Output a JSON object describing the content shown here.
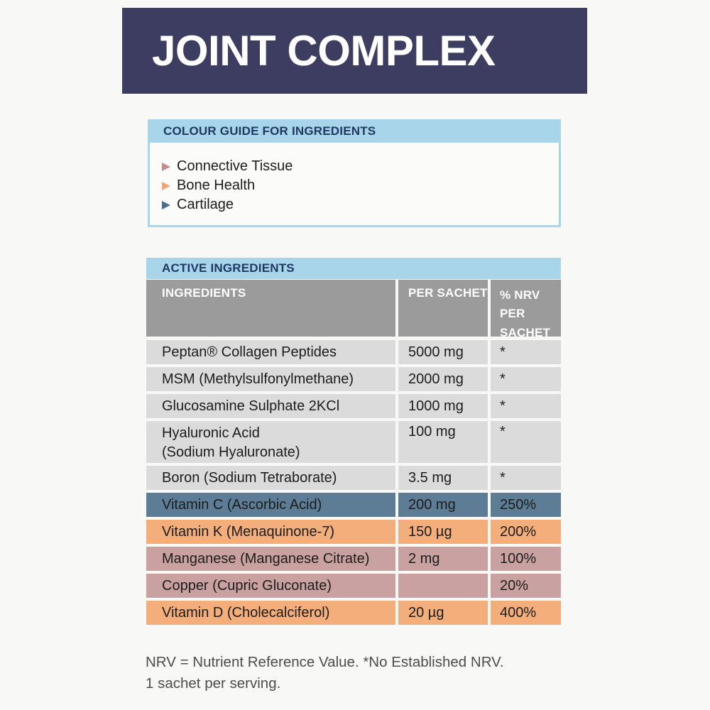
{
  "title": "JOINT COMPLEX",
  "colour_guide": {
    "header": "COLOUR GUIDE FOR INGREDIENTS",
    "items": [
      {
        "label": "Connective Tissue",
        "color": "#c18e8d"
      },
      {
        "label": "Bone Health",
        "color": "#efa577"
      },
      {
        "label": "Cartilage",
        "color": "#4e6d8a"
      }
    ]
  },
  "table": {
    "section_header": "ACTIVE INGREDIENTS",
    "columns": [
      "INGREDIENTS",
      "PER SACHET",
      "% NRV PER SACHET"
    ],
    "rows": [
      {
        "name": "Peptan® Collagen Peptides",
        "per_sachet": "5000 mg",
        "nrv": "*",
        "category": ""
      },
      {
        "name": "MSM (Methylsulfonylmethane)",
        "per_sachet": "2000 mg",
        "nrv": "*",
        "category": ""
      },
      {
        "name": "Glucosamine Sulphate 2KCl",
        "per_sachet": "1000 mg",
        "nrv": "*",
        "category": ""
      },
      {
        "name": "Hyaluronic Acid\n(Sodium Hyaluronate)",
        "per_sachet": "100 mg",
        "nrv": "*",
        "category": ""
      },
      {
        "name": "Boron (Sodium Tetraborate)",
        "per_sachet": "3.5 mg",
        "nrv": "*",
        "category": ""
      },
      {
        "name": "Vitamin C (Ascorbic Acid)",
        "per_sachet": "200 mg",
        "nrv": "250%",
        "category": "cartilage"
      },
      {
        "name": "Vitamin K (Menaquinone-7)",
        "per_sachet": "150 µg",
        "nrv": "200%",
        "category": "bone-health"
      },
      {
        "name": "Manganese (Manganese Citrate)",
        "per_sachet": "2 mg",
        "nrv": "100%",
        "category": "connective-tissue"
      },
      {
        "name": "Copper  (Cupric Gluconate)",
        "per_sachet": "",
        "nrv": "20%",
        "category": "connective-tissue"
      },
      {
        "name": "Vitamin D (Cholecalciferol)",
        "per_sachet": "20 µg",
        "nrv": "400%",
        "category": "bone-health"
      }
    ]
  },
  "footnotes": [
    "NRV = Nutrient Reference Value. *No Established NRV.",
    "1 sachet per serving."
  ],
  "colors": {
    "title_bar_bg": "#3c3d60",
    "panel_header_bg": "#a9d5ea",
    "heading_text": "#1e3a63",
    "table_header_bg": "#9b9b9b",
    "row_default_bg": "#dbdbdb",
    "row_cartilage_bg": "#5d7d96",
    "row_bone_health_bg": "#f4ae7b",
    "row_connective_tissue_bg": "#caa1a1"
  }
}
